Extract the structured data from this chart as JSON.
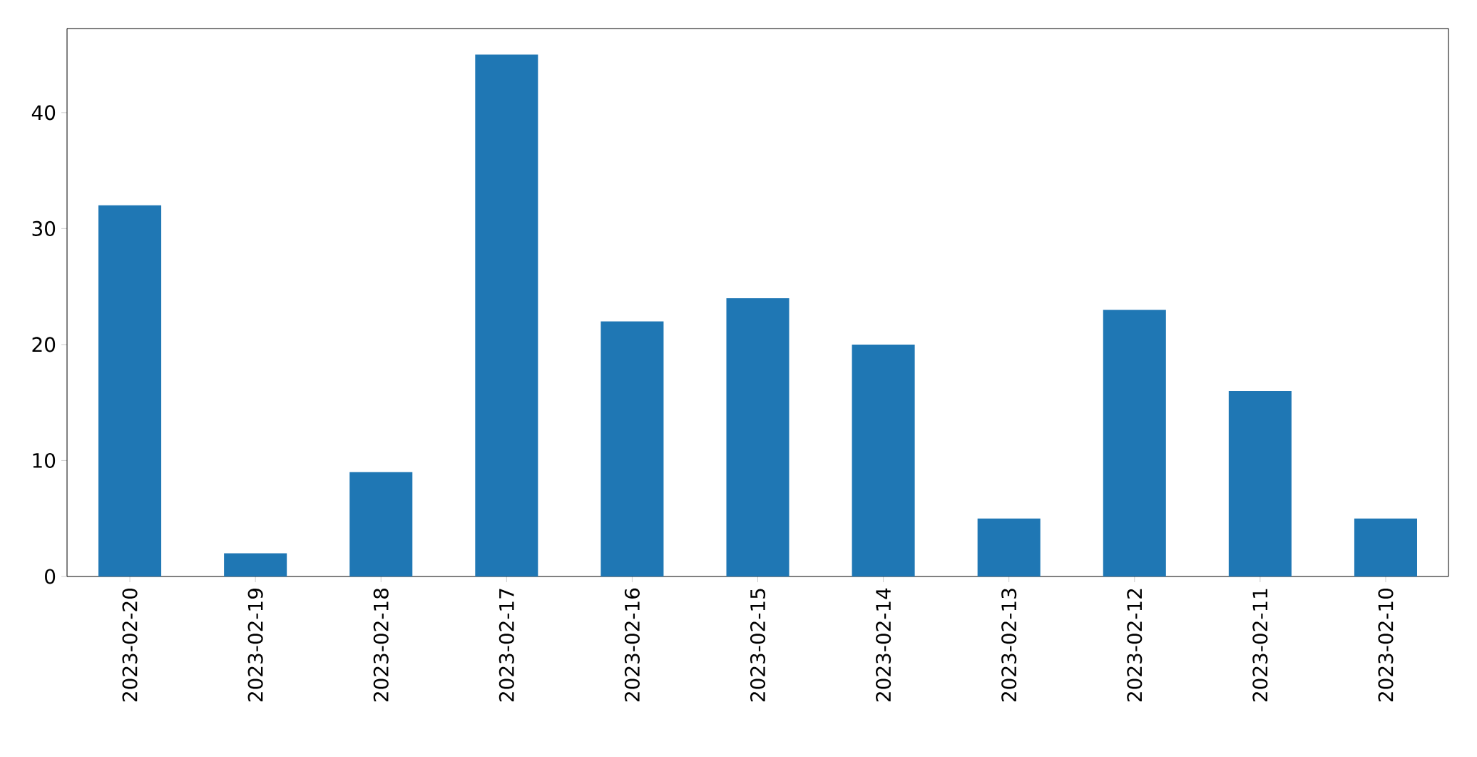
{
  "chart_data": {
    "type": "bar",
    "categories": [
      "2023-02-20",
      "2023-02-19",
      "2023-02-18",
      "2023-02-17",
      "2023-02-16",
      "2023-02-15",
      "2023-02-14",
      "2023-02-13",
      "2023-02-12",
      "2023-02-11",
      "2023-02-10"
    ],
    "values": [
      32,
      2,
      9,
      45,
      22,
      24,
      20,
      5,
      23,
      16,
      5
    ],
    "color": "#1f77b4",
    "ylim": [
      0,
      47.25
    ],
    "yticks": [
      0,
      10,
      20,
      30,
      40
    ]
  }
}
